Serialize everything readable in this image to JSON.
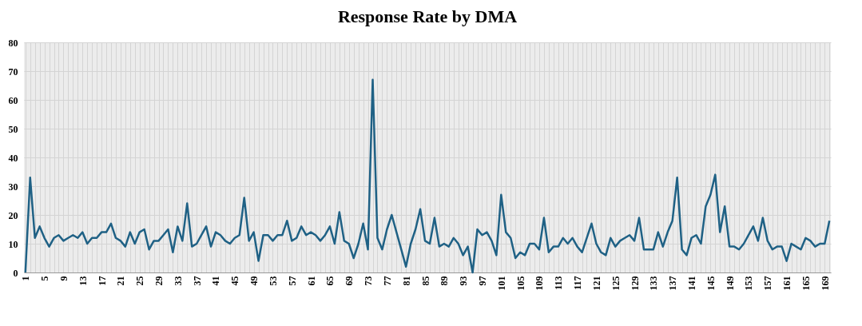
{
  "chart_data": {
    "type": "line",
    "title": "Response Rate by DMA",
    "categories": [
      "1",
      null,
      null,
      null,
      "5",
      null,
      null,
      null,
      "9",
      null,
      null,
      null,
      "13",
      null,
      null,
      null,
      "17",
      null,
      null,
      null,
      "21",
      null,
      null,
      null,
      "25",
      null,
      null,
      null,
      "29",
      null,
      null,
      null,
      "33",
      null,
      null,
      null,
      "37",
      null,
      null,
      null,
      "41",
      null,
      null,
      null,
      "45",
      null,
      null,
      null,
      "49",
      null,
      null,
      null,
      "53",
      null,
      null,
      null,
      "57",
      null,
      null,
      null,
      "61",
      null,
      null,
      null,
      "65",
      null,
      null,
      null,
      "69",
      null,
      null,
      null,
      "73",
      null,
      null,
      null,
      "77",
      null,
      null,
      null,
      "81",
      null,
      null,
      null,
      "85",
      null,
      null,
      null,
      "89",
      null,
      null,
      null,
      "93",
      null,
      null,
      null,
      "97",
      null,
      null,
      null,
      "101",
      null,
      null,
      null,
      "105",
      null,
      null,
      null,
      "109",
      null,
      null,
      null,
      "113",
      null,
      null,
      null,
      "117",
      null,
      null,
      null,
      "121",
      null,
      null,
      null,
      "125",
      null,
      null,
      null,
      "129",
      null,
      null,
      null,
      "133",
      null,
      null,
      null,
      "137",
      null,
      null,
      null,
      "141",
      null,
      null,
      null,
      "145",
      null,
      null,
      null,
      "149",
      null,
      null,
      null,
      "153",
      null,
      null,
      null,
      "157",
      null,
      null,
      null,
      "161",
      null,
      null,
      null,
      "165",
      null,
      null,
      null,
      "169",
      null
    ],
    "series": [
      {
        "color": "#1f6185",
        "values": [
          0,
          33,
          12,
          16,
          12,
          9,
          12,
          13,
          11,
          12,
          13,
          12,
          14,
          10,
          12,
          12,
          14,
          14,
          17,
          12,
          11,
          9,
          14,
          10,
          14,
          15,
          8,
          11,
          11,
          13,
          15,
          7,
          16,
          11,
          24,
          9,
          10,
          13,
          16,
          9,
          14,
          13,
          11,
          10,
          12,
          13,
          26,
          11,
          14,
          4,
          13,
          13,
          11,
          13,
          13,
          18,
          11,
          12,
          16,
          13,
          14,
          13,
          11,
          13,
          16,
          10,
          21,
          11,
          10,
          5,
          10,
          17,
          8,
          67,
          12,
          8,
          15,
          20,
          14,
          8,
          2,
          10,
          15,
          22,
          11,
          10,
          19,
          9,
          10,
          9,
          12,
          10,
          6,
          9,
          0,
          15,
          13,
          14,
          11,
          6,
          27,
          14,
          12,
          5,
          7,
          6,
          10,
          10,
          8,
          19,
          7,
          9,
          9,
          12,
          10,
          12,
          9,
          7,
          12,
          17,
          10,
          7,
          6,
          12,
          9,
          11,
          12,
          13,
          11,
          19,
          8,
          8,
          8,
          14,
          9,
          14,
          18,
          33,
          8,
          6,
          12,
          13,
          10,
          23,
          27,
          34,
          14,
          23,
          9,
          9,
          8,
          10,
          13,
          16,
          11,
          19,
          11,
          8,
          9,
          9,
          4,
          10,
          9,
          8,
          12,
          11,
          9,
          10,
          10,
          18
        ]
      }
    ],
    "ylim": [
      0,
      80
    ],
    "yticks": [
      0,
      10,
      20,
      30,
      40,
      50,
      60,
      70,
      80
    ],
    "grid": true
  }
}
